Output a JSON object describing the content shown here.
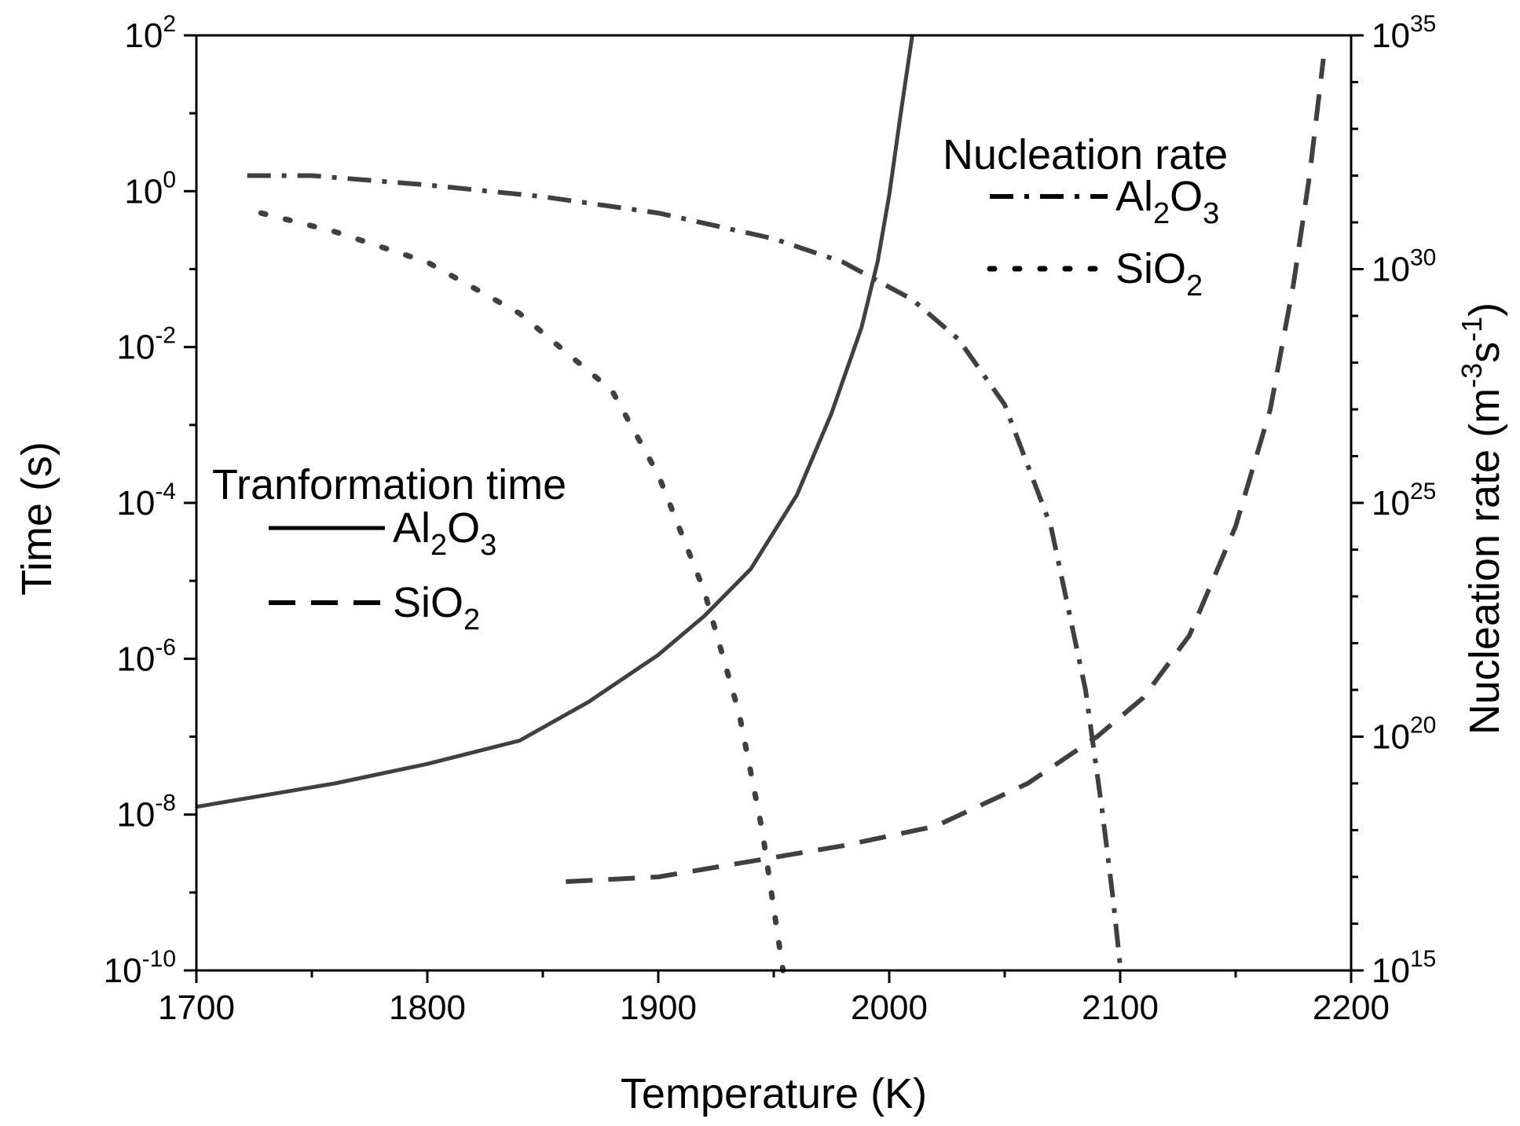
{
  "chart_data": {
    "type": "line",
    "xlabel": "Temperature (K)",
    "ylabel_left": "Time (s)",
    "ylabel_right": "Nucleation rate (m-3s-1)",
    "ylabel_right_parts": {
      "base": "Nucleation rate (m",
      "sup1": "-3",
      "mid": "s",
      "sup2": "-1",
      "end": ")"
    },
    "xlim": [
      1700,
      2200
    ],
    "ylim_left_log10": [
      -10,
      2
    ],
    "ylim_right_log10": [
      15,
      35
    ],
    "x_ticks": [
      {
        "value": 1700,
        "label": "1700"
      },
      {
        "value": 1800,
        "label": "1800"
      },
      {
        "value": 1900,
        "label": "1900"
      },
      {
        "value": 2000,
        "label": "2000"
      },
      {
        "value": 2100,
        "label": "2100"
      },
      {
        "value": 2200,
        "label": "2200"
      }
    ],
    "y_left_ticks": [
      {
        "exp": 2,
        "base": "10",
        "sup": "2"
      },
      {
        "exp": 0,
        "base": "10",
        "sup": "0"
      },
      {
        "exp": -2,
        "base": "10",
        "sup": "-2"
      },
      {
        "exp": -4,
        "base": "10",
        "sup": "-4"
      },
      {
        "exp": -6,
        "base": "10",
        "sup": "-6"
      },
      {
        "exp": -8,
        "base": "10",
        "sup": "-8"
      },
      {
        "exp": -10,
        "base": "10",
        "sup": "-10"
      }
    ],
    "y_right_ticks": [
      {
        "exp": 35,
        "base": "10",
        "sup": "35"
      },
      {
        "exp": 30,
        "base": "10",
        "sup": "30"
      },
      {
        "exp": 25,
        "base": "10",
        "sup": "25"
      },
      {
        "exp": 20,
        "base": "10",
        "sup": "20"
      },
      {
        "exp": 15,
        "base": "10",
        "sup": "15"
      }
    ],
    "legends": [
      {
        "title": "Tranformation time",
        "position": "middle-left",
        "entries": [
          {
            "series": "Al2O3 transformation time",
            "base": "Al",
            "sub1": "2",
            "mid": "O",
            "sub2": "3"
          },
          {
            "series": "SiO2 transformation time",
            "base": "SiO",
            "sub1": "2",
            "mid": "",
            "sub2": ""
          }
        ]
      },
      {
        "title": "Nucleation rate",
        "position": "top-right",
        "entries": [
          {
            "series": "Al2O3 nucleation rate",
            "base": "Al",
            "sub1": "2",
            "mid": "O",
            "sub2": "3"
          },
          {
            "series": "SiO2 nucleation rate",
            "base": "SiO",
            "sub1": "2",
            "mid": "",
            "sub2": ""
          }
        ]
      }
    ],
    "series": [
      {
        "name": "Al2O3 transformation time",
        "axis": "left",
        "style": "solid",
        "x": [
          1700,
          1720,
          1760,
          1800,
          1840,
          1870,
          1900,
          1920,
          1940,
          1960,
          1975,
          1988,
          1995,
          2000,
          2005,
          2010
        ],
        "log10_y": [
          -7.9,
          -7.8,
          -7.6,
          -7.35,
          -7.05,
          -6.55,
          -5.95,
          -5.45,
          -4.85,
          -3.9,
          -2.85,
          -1.75,
          -0.9,
          -0.05,
          1.0,
          2.0
        ]
      },
      {
        "name": "SiO2 transformation time",
        "axis": "left",
        "style": "dashed",
        "x": [
          1860,
          1900,
          1940,
          1980,
          2020,
          2060,
          2090,
          2110,
          2130,
          2150,
          2165,
          2175,
          2182,
          2188
        ],
        "log10_y": [
          -8.86,
          -8.8,
          -8.6,
          -8.4,
          -8.15,
          -7.6,
          -7.0,
          -6.5,
          -5.7,
          -4.3,
          -2.8,
          -1.2,
          0.2,
          1.7
        ]
      },
      {
        "name": "Al2O3 nucleation rate",
        "axis": "right",
        "style": "dash-dot",
        "x": [
          1722,
          1750,
          1800,
          1850,
          1900,
          1950,
          1980,
          2010,
          2030,
          2050,
          2070,
          2085,
          2092,
          2097,
          2100
        ],
        "log10_y": [
          32.0,
          32.0,
          31.8,
          31.55,
          31.2,
          30.65,
          30.15,
          29.35,
          28.5,
          27.1,
          24.5,
          21.0,
          18.5,
          16.5,
          15.1
        ]
      },
      {
        "name": "SiO2 nucleation rate",
        "axis": "right",
        "style": "dotted",
        "x": [
          1728,
          1760,
          1800,
          1840,
          1880,
          1900,
          1920,
          1935,
          1945,
          1951,
          1954
        ],
        "log10_y": [
          31.2,
          30.8,
          30.15,
          29.05,
          27.4,
          25.6,
          23.1,
          20.5,
          18.0,
          16.0,
          15.0
        ]
      }
    ]
  }
}
